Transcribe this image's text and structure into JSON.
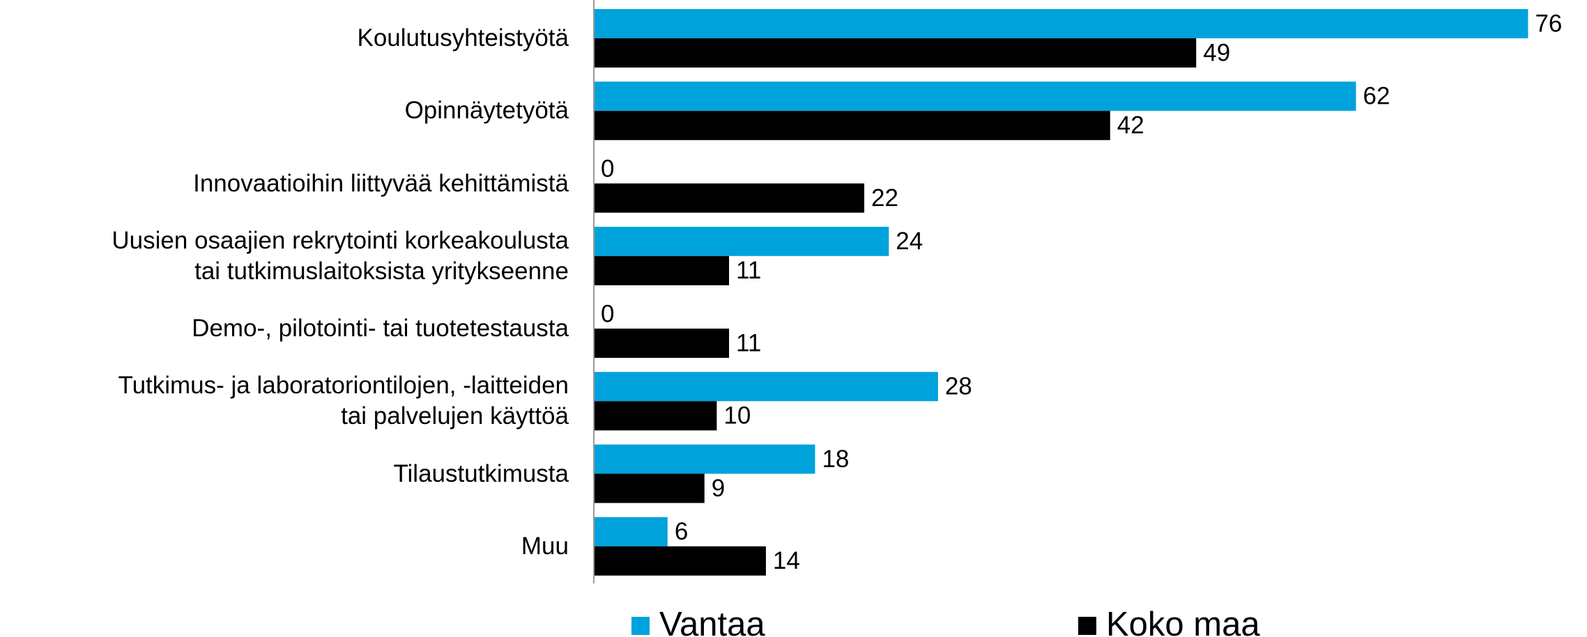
{
  "chart_data": {
    "type": "hbar",
    "categories": [
      "Koulutusyhteistyötä",
      "Opinnäytetyötä",
      "Innovaatioihin liittyvää kehittämistä",
      "Uusien osaajien rekrytointi korkeakoulusta\ntai tutkimuslaitoksista yritykseenne",
      "Demo-, pilotointi- tai tuotetestausta",
      "Tutkimus- ja laboratoriontilojen, -laitteiden\ntai palvelujen käyttöä",
      "Tilaustutkimusta",
      "Muu"
    ],
    "series": [
      {
        "name": "Vantaa",
        "color": "#00a2dc",
        "values": [
          76,
          62,
          0,
          24,
          0,
          28,
          18,
          6
        ]
      },
      {
        "name": "Koko maa",
        "color": "#000000",
        "values": [
          49,
          42,
          22,
          11,
          11,
          10,
          9,
          14
        ]
      }
    ],
    "xlim": [
      0,
      80
    ]
  }
}
